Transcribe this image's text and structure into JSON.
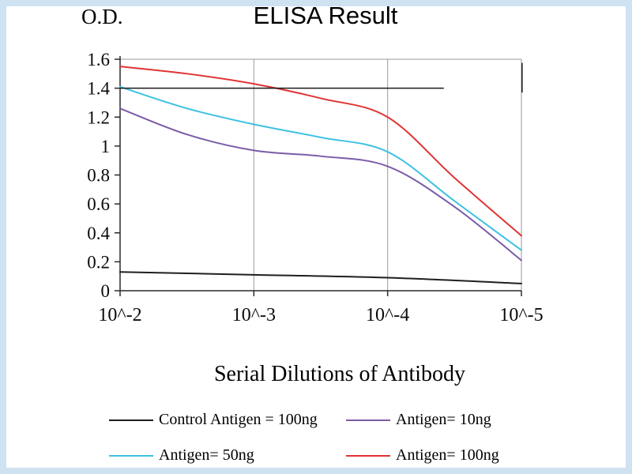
{
  "colors": {
    "frame": "#cfe2f2",
    "panel": "#ffffff"
  },
  "chart_data": {
    "type": "line",
    "title": "ELISA Result",
    "ylabel": "O.D.",
    "xlabel": "Serial Dilutions of Antibody",
    "x_axis": {
      "ticks": [
        {
          "t": 0,
          "label": "10^-2"
        },
        {
          "t": 1,
          "label": "10^-3"
        },
        {
          "t": 2,
          "label": "10^-4"
        },
        {
          "t": 3,
          "label": "10^-5"
        }
      ]
    },
    "y_axis": {
      "min": 0,
      "max": 1.6,
      "ticks": [
        {
          "v": 0,
          "label": "0"
        },
        {
          "v": 0.2,
          "label": "0.2"
        },
        {
          "v": 0.4,
          "label": "0.4"
        },
        {
          "v": 0.6,
          "label": "0.6"
        },
        {
          "v": 0.8,
          "label": "0.8"
        },
        {
          "v": 1,
          "label": "1"
        },
        {
          "v": 1.2,
          "label": "1.2"
        },
        {
          "v": 1.4,
          "label": "1.4"
        },
        {
          "v": 1.6,
          "label": "1.6"
        }
      ]
    },
    "grid": {
      "vertical_at": [
        1,
        2,
        3
      ],
      "horizontal_at": [
        1.6
      ]
    },
    "style": {
      "axis_color": "#2a2a2a",
      "grid_color": "#9a9a9a",
      "artifact_color": "#1a1a1a",
      "text_color": "#0a0a0a"
    },
    "series": [
      {
        "name": "Control Antigen = 100ng",
        "color": "#1f1f1f",
        "x": [
          0,
          1,
          2,
          3
        ],
        "values": [
          0.13,
          0.11,
          0.09,
          0.05
        ]
      },
      {
        "name": "Antigen= 10ng",
        "color": "#7a5ca8",
        "x": [
          0,
          0.5,
          1,
          1.5,
          2,
          2.5,
          3
        ],
        "values": [
          1.26,
          1.08,
          0.97,
          0.93,
          0.86,
          0.58,
          0.21
        ]
      },
      {
        "name": "Antigen= 50ng",
        "color": "#3fc1e2",
        "x": [
          0,
          0.5,
          1,
          1.5,
          2,
          2.5,
          3
        ],
        "values": [
          1.41,
          1.26,
          1.15,
          1.06,
          0.96,
          0.62,
          0.28
        ]
      },
      {
        "name": "Antigen= 100ng",
        "color": "#e03434",
        "x": [
          0,
          0.5,
          1,
          1.5,
          2,
          2.5,
          3
        ],
        "values": [
          1.55,
          1.5,
          1.43,
          1.33,
          1.2,
          0.78,
          0.38
        ]
      }
    ],
    "artifact_lines": [
      {
        "x1": 0,
        "v1": 1.4,
        "x2": 2.42,
        "v2": 1.4
      },
      {
        "x1": 3.005,
        "v1": 1.37,
        "x2": 3.005,
        "v2": 1.575
      }
    ]
  }
}
